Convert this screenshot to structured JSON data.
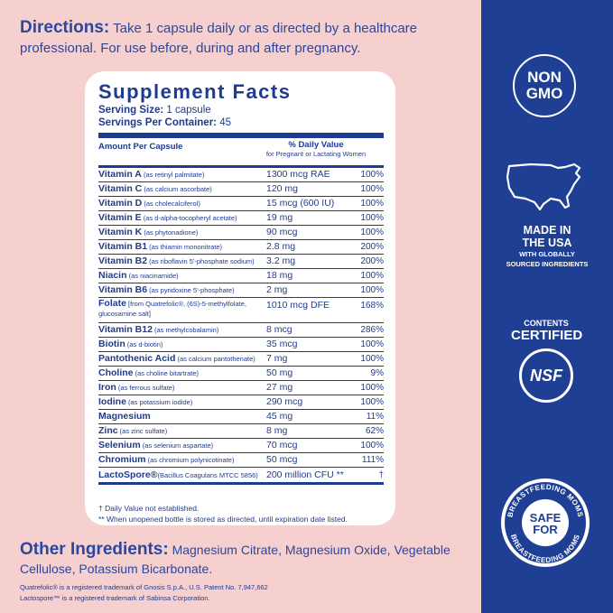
{
  "directions": {
    "label": "Directions:",
    "text": " Take 1 capsule daily or as directed by a healthcare professional. For use before, during and after pregnancy."
  },
  "facts": {
    "title": "Supplement Facts",
    "serving_size_label": "Serving Size:",
    "serving_size": " 1 capsule",
    "servings_per_label": "Servings Per Container:",
    "servings_per": " 45",
    "amount_header": "Amount Per Capsule",
    "dv_header": "% Daily Value",
    "dv_subheader": "for Pregnant or Lactating Women",
    "rows": [
      {
        "name": "Vitamin A",
        "src": " (as retinyl palmitate)",
        "amount": "1300 mcg RAE",
        "pct": "100%"
      },
      {
        "name": "Vitamin C",
        "src": " (as calcium ascorbate)",
        "amount": "120 mg",
        "pct": "100%"
      },
      {
        "name": "Vitamin D",
        "src": " (as cholecalciferol)",
        "amount": "15 mcg (600 IU)",
        "pct": "100%"
      },
      {
        "name": "Vitamin E",
        "src": " (as d-alpha-tocopheryl acetate)",
        "amount": "19 mg",
        "pct": "100%"
      },
      {
        "name": "Vitamin K",
        "src": " (as phytonadione)",
        "amount": "90 mcg",
        "pct": "100%"
      },
      {
        "name": "Vitamin B1",
        "src": " (as thiamin mononitrate)",
        "amount": "2.8 mg",
        "pct": "200%"
      },
      {
        "name": "Vitamin B2",
        "src": " (as riboflavin 5'-phosphate sodium)",
        "amount": "3.2 mg",
        "pct": "200%"
      },
      {
        "name": "Niacin",
        "src": " (as niacinamide)",
        "amount": "18 mg",
        "pct": "100%"
      },
      {
        "name": "Vitamin B6",
        "src": " (as pyridoxine 5'-phosphate)",
        "amount": "2 mg",
        "pct": "100%"
      },
      {
        "name": "Folate",
        "src": " [from Quatrefolic®, (6S)-5-methylfolate, glucosamine salt]",
        "amount": "1010 mcg DFE",
        "pct": "168%"
      },
      {
        "name": "Vitamin B12",
        "src": " (as methylcobalamin)",
        "amount": "8 mcg",
        "pct": "286%"
      },
      {
        "name": "Biotin",
        "src": " (as d-biotin)",
        "amount": "35 mcg",
        "pct": "100%"
      },
      {
        "name": "Pantothenic Acid",
        "src": " (as calcium pantothenate)",
        "amount": "7 mg",
        "pct": "100%"
      },
      {
        "name": "Choline",
        "src": " (as choline bitartrate)",
        "amount": "50 mg",
        "pct": "9%"
      },
      {
        "name": "Iron",
        "src": " (as ferrous sulfate)",
        "amount": "27 mg",
        "pct": "100%"
      },
      {
        "name": "Iodine",
        "src": " (as potassium iodide)",
        "amount": "290 mcg",
        "pct": "100%"
      },
      {
        "name": "Magnesium",
        "src": "",
        "amount": "45 mg",
        "pct": "11%"
      },
      {
        "name": "Zinc",
        "src": " (as zinc sulfate)",
        "amount": "8 mg",
        "pct": "62%"
      },
      {
        "name": "Selenium",
        "src": " (as selenium aspartate)",
        "amount": "70 mcg",
        "pct": "100%"
      },
      {
        "name": "Chromium",
        "src": " (as chromium polynicotinate)",
        "amount": "50 mcg",
        "pct": "111%"
      },
      {
        "name": "LactoSpore®",
        "src": "(Bacillus Coagulans MTCC 5856)",
        "amount": "200 million CFU **",
        "pct": "†"
      }
    ],
    "footnote1": "† Daily Value not established.",
    "footnote2": "** When unopened bottle is stored as directed, until expiration date listed."
  },
  "other": {
    "label": "Other Ingredients:",
    "text": " Magnesium Citrate, Magnesium Oxide, Vegetable Cellulose, Potassium Bicarbonate."
  },
  "trademarks": {
    "line1": "Quatrefolic® is a registered trademark of Gnosis S.p.A., U.S. Patent No. 7,947,662",
    "line2": "Lactospore™ is a registered trademark of Sabinsa Corporation."
  },
  "sidebar": {
    "nongmo_line1": "NON",
    "nongmo_line2": "GMO",
    "usa_line1": "MADE IN",
    "usa_line2": "THE USA",
    "usa_line3": "WITH GLOBALLY",
    "usa_line4": "SOURCED INGREDIENTS",
    "nsf_line1": "CONTENTS",
    "nsf_line2": "CERTIFIED",
    "nsf_logo": "NSF",
    "safe_arc_top": "BREASTFEEDING MOMS",
    "safe_arc_bottom": "BREASTFEEDING MOMS",
    "safe_line1": "SAFE",
    "safe_line2": "FOR"
  },
  "colors": {
    "pink": "#f6cfcf",
    "navy": "#1e3f93",
    "text_blue": "#2a48a0"
  }
}
